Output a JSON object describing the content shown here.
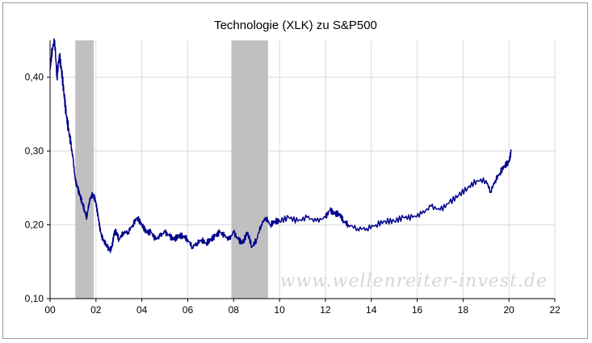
{
  "chart_data": {
    "type": "line",
    "title": "Technologie (XLK) zu S&P500",
    "xlabel": "",
    "ylabel": "",
    "watermark": "www.wellenreiter-invest.de",
    "grid": true,
    "legend": "none",
    "line_color": "#00008b",
    "shade_color": "#c0c0c0",
    "xlim": [
      0,
      22
    ],
    "ylim": [
      0.1,
      0.45
    ],
    "x_ticks": [
      {
        "v": 0,
        "label": "00"
      },
      {
        "v": 2,
        "label": "02"
      },
      {
        "v": 4,
        "label": "04"
      },
      {
        "v": 6,
        "label": "06"
      },
      {
        "v": 8,
        "label": "08"
      },
      {
        "v": 10,
        "label": "10"
      },
      {
        "v": 12,
        "label": "12"
      },
      {
        "v": 14,
        "label": "14"
      },
      {
        "v": 16,
        "label": "16"
      },
      {
        "v": 18,
        "label": "18"
      },
      {
        "v": 20,
        "label": "20"
      },
      {
        "v": 22,
        "label": "22"
      }
    ],
    "y_ticks": [
      {
        "v": 0.1,
        "label": "0,10"
      },
      {
        "v": 0.2,
        "label": "0,20"
      },
      {
        "v": 0.3,
        "label": "0,30"
      },
      {
        "v": 0.4,
        "label": "0,40"
      }
    ],
    "shaded_ranges": [
      [
        1.1,
        1.9
      ],
      [
        7.9,
        9.5
      ]
    ],
    "series": [
      {
        "x": [
          0.0,
          0.1,
          0.2,
          0.3,
          0.4,
          0.5,
          0.6,
          0.7,
          0.8,
          0.9,
          1.0,
          1.1,
          1.2,
          1.3,
          1.4,
          1.5,
          1.6,
          1.7,
          1.8,
          1.9,
          2.0,
          2.1,
          2.2,
          2.3,
          2.4,
          2.5,
          2.6,
          2.7,
          2.8,
          2.9,
          3.0,
          3.2,
          3.4,
          3.6,
          3.8,
          4.0,
          4.2,
          4.4,
          4.6,
          4.8,
          5.0,
          5.2,
          5.4,
          5.6,
          5.8,
          6.0,
          6.2,
          6.4,
          6.6,
          6.8,
          7.0,
          7.2,
          7.4,
          7.6,
          7.8,
          8.0,
          8.2,
          8.4,
          8.6,
          8.8,
          9.0,
          9.2,
          9.4,
          9.6,
          9.8,
          10.0,
          10.4,
          10.8,
          11.2,
          11.6,
          12.0,
          12.2,
          12.4,
          12.6,
          12.8,
          13.0,
          13.4,
          13.8,
          14.2,
          14.6,
          15.0,
          15.4,
          15.8,
          16.2,
          16.6,
          17.0,
          17.4,
          17.8,
          18.2,
          18.6,
          19.0,
          19.2,
          19.4,
          19.6,
          19.8,
          20.0,
          20.1
        ],
        "y": [
          0.41,
          0.44,
          0.45,
          0.4,
          0.43,
          0.41,
          0.38,
          0.35,
          0.33,
          0.31,
          0.29,
          0.26,
          0.25,
          0.24,
          0.23,
          0.22,
          0.21,
          0.23,
          0.24,
          0.24,
          0.23,
          0.21,
          0.19,
          0.18,
          0.175,
          0.17,
          0.165,
          0.17,
          0.19,
          0.19,
          0.18,
          0.19,
          0.19,
          0.2,
          0.21,
          0.2,
          0.19,
          0.19,
          0.18,
          0.185,
          0.19,
          0.185,
          0.18,
          0.185,
          0.185,
          0.18,
          0.17,
          0.175,
          0.18,
          0.175,
          0.18,
          0.185,
          0.19,
          0.185,
          0.18,
          0.19,
          0.18,
          0.175,
          0.19,
          0.17,
          0.18,
          0.2,
          0.21,
          0.2,
          0.205,
          0.205,
          0.21,
          0.205,
          0.21,
          0.205,
          0.21,
          0.22,
          0.215,
          0.215,
          0.205,
          0.2,
          0.195,
          0.195,
          0.2,
          0.205,
          0.205,
          0.21,
          0.21,
          0.215,
          0.225,
          0.22,
          0.23,
          0.24,
          0.25,
          0.26,
          0.26,
          0.245,
          0.26,
          0.27,
          0.28,
          0.285,
          0.3
        ]
      }
    ]
  }
}
